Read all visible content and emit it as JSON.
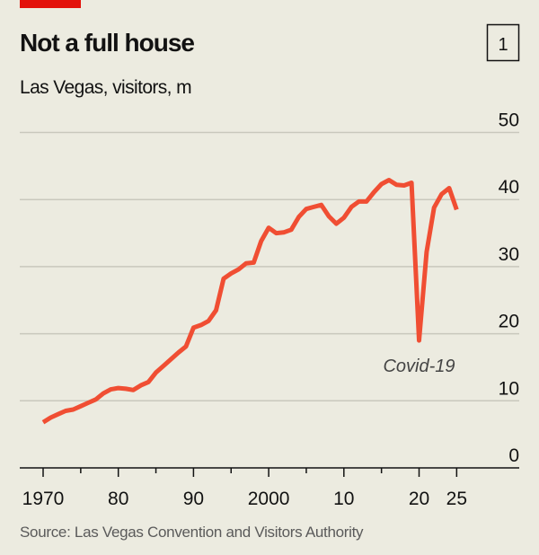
{
  "header": {
    "title": "Not a full house",
    "subtitle": "Las Vegas, visitors, m",
    "chart_number": "1"
  },
  "footer": {
    "source": "Source: Las Vegas Convention and Visitors Authority"
  },
  "colors": {
    "background": "#ecebe0",
    "line": "#f04e33",
    "accent_bar": "#e3120b",
    "grid": "#c9c8bd"
  },
  "chart_data": {
    "type": "line",
    "title": "Not a full house",
    "subtitle": "Las Vegas, visitors, m",
    "xlim": [
      1970,
      2025
    ],
    "ylim": [
      0,
      50
    ],
    "grid": true,
    "y_axis_side": "right",
    "x_ticks": [
      {
        "v": 1970,
        "label": "1970"
      },
      {
        "v": 1980,
        "label": "80"
      },
      {
        "v": 1990,
        "label": "90"
      },
      {
        "v": 2000,
        "label": "2000"
      },
      {
        "v": 2010,
        "label": "10"
      },
      {
        "v": 2020,
        "label": "20"
      },
      {
        "v": 2025,
        "label": "25"
      }
    ],
    "y_ticks": [
      {
        "v": 0,
        "label": "0"
      },
      {
        "v": 10,
        "label": "10"
      },
      {
        "v": 20,
        "label": "20"
      },
      {
        "v": 30,
        "label": "30"
      },
      {
        "v": 40,
        "label": "40"
      },
      {
        "v": 50,
        "label": "50"
      }
    ],
    "annotations": [
      {
        "x": 2020,
        "y": 19.0,
        "text": "Covid-19"
      }
    ],
    "x": [
      1970,
      1971,
      1972,
      1973,
      1974,
      1975,
      1976,
      1977,
      1978,
      1979,
      1980,
      1981,
      1982,
      1983,
      1984,
      1985,
      1986,
      1987,
      1988,
      1989,
      1990,
      1991,
      1992,
      1993,
      1994,
      1995,
      1996,
      1997,
      1998,
      1999,
      2000,
      2001,
      2002,
      2003,
      2004,
      2005,
      2006,
      2007,
      2008,
      2009,
      2010,
      2011,
      2012,
      2013,
      2014,
      2015,
      2016,
      2017,
      2018,
      2019,
      2020,
      2021,
      2022,
      2023,
      2024,
      2025
    ],
    "values": [
      6.8,
      7.5,
      8.0,
      8.5,
      8.7,
      9.2,
      9.7,
      10.2,
      11.1,
      11.7,
      11.9,
      11.8,
      11.6,
      12.3,
      12.8,
      14.2,
      15.2,
      16.2,
      17.2,
      18.1,
      20.9,
      21.3,
      21.9,
      23.5,
      28.2,
      29.0,
      29.6,
      30.5,
      30.6,
      33.8,
      35.8,
      35.0,
      35.1,
      35.5,
      37.4,
      38.6,
      38.9,
      39.2,
      37.5,
      36.4,
      37.3,
      38.9,
      39.7,
      39.7,
      41.1,
      42.3,
      42.9,
      42.2,
      42.1,
      42.5,
      19.0,
      32.2,
      38.8,
      40.8,
      41.7,
      38.5
    ]
  }
}
